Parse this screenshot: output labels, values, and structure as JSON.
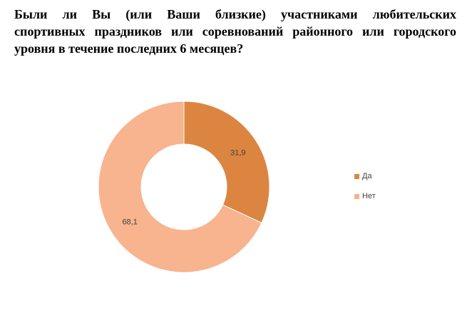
{
  "question": {
    "line1": "Были ли Вы (или Ваши близкие) участниками любительских",
    "line2": "спортивных праздников или соревнований районного или городского",
    "line3": "уровня в течение последних 6 месяцев?"
  },
  "chart_data": {
    "type": "pie",
    "variant": "donut",
    "title": "Были ли Вы (или Ваши близкие) участниками любительских спортивных праздников или соревнований районного или городского уровня в течение последних 6 месяцев?",
    "categories": [
      "Да",
      "Нет"
    ],
    "values": [
      31.9,
      68.1
    ],
    "data_labels": [
      "31,9",
      "68,1"
    ],
    "colors": [
      "#dc8540",
      "#f7b48e"
    ],
    "legend_position": "right"
  }
}
